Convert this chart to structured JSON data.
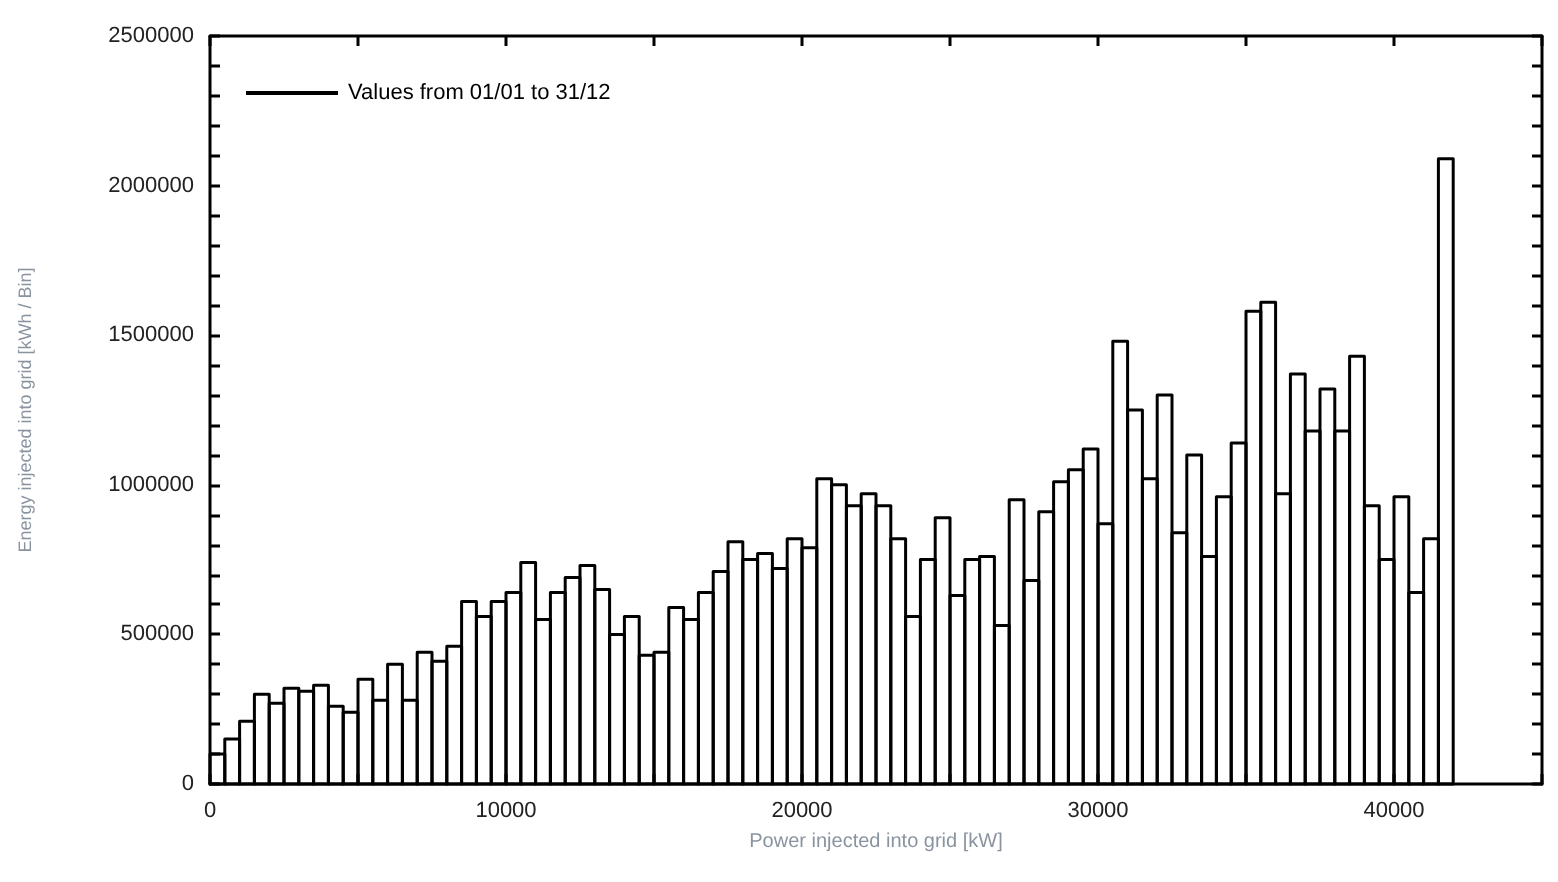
{
  "chart_data": {
    "type": "histogram",
    "xlabel": "Power injected into grid [kW]",
    "ylabel": "Energy injected into grid [kWh / Bin]",
    "bins": [
      0,
      500,
      1000,
      1500,
      2000,
      2500,
      3000,
      3500,
      4000,
      4500,
      5000,
      5500,
      6000,
      6500,
      7000,
      7500,
      8000,
      8500,
      9000,
      9500,
      10000,
      10500,
      11000,
      11500,
      12000,
      12500,
      13000,
      13500,
      14000,
      14500,
      15000,
      15500,
      16000,
      16500,
      17000,
      17500,
      18000,
      18500,
      19000,
      19500,
      20000,
      20500,
      21000,
      21500,
      22000,
      22500,
      23000,
      23500,
      24000,
      24500,
      25000,
      25500,
      26000,
      26500,
      27000,
      27500,
      28000,
      28500,
      29000,
      29500,
      30000,
      30500,
      31000,
      31500,
      32000,
      32500,
      33000,
      33500,
      34000,
      34500,
      35000,
      35500,
      36000,
      36500,
      37000,
      37500,
      38000,
      38500,
      39000,
      39500,
      40000,
      40500,
      41000,
      41500,
      42000
    ],
    "series": [
      {
        "name": "Values from 01/01 to 31/12",
        "color": "#000000",
        "values": [
          100000,
          150000,
          210000,
          300000,
          270000,
          320000,
          310000,
          330000,
          260000,
          240000,
          350000,
          280000,
          400000,
          280000,
          440000,
          410000,
          460000,
          610000,
          560000,
          610000,
          640000,
          740000,
          550000,
          640000,
          690000,
          730000,
          650000,
          500000,
          560000,
          430000,
          440000,
          590000,
          550000,
          640000,
          710000,
          810000,
          750000,
          770000,
          720000,
          820000,
          790000,
          1020000,
          1000000,
          930000,
          970000,
          930000,
          820000,
          560000,
          750000,
          890000,
          630000,
          750000,
          760000,
          530000,
          950000,
          680000,
          910000,
          1010000,
          1050000,
          1120000,
          870000,
          1480000,
          1250000,
          1020000,
          1300000,
          840000,
          1100000,
          760000,
          960000,
          1140000,
          1580000,
          1610000,
          970000,
          1370000,
          1180000,
          1320000,
          1180000,
          1430000,
          930000,
          750000,
          960000,
          640000,
          820000,
          2090000
        ]
      }
    ],
    "xlim": [
      0,
      45000
    ],
    "xticks": [
      0,
      {
        "value": 5000,
        "label": null
      },
      10000,
      {
        "value": 15000,
        "label": null
      },
      20000,
      {
        "value": 25000,
        "label": null
      },
      30000,
      {
        "value": 35000,
        "label": null
      },
      40000,
      {
        "value": 45000,
        "label": null
      }
    ],
    "ylim": [
      0,
      2500000
    ],
    "yticks": [
      0,
      {
        "value": 100000,
        "label": null
      },
      {
        "value": 200000,
        "label": null
      },
      {
        "value": 300000,
        "label": null
      },
      {
        "value": 400000,
        "label": null
      },
      500000,
      {
        "value": 600000,
        "label": null
      },
      {
        "value": 700000,
        "label": null
      },
      {
        "value": 800000,
        "label": null
      },
      {
        "value": 900000,
        "label": null
      },
      1000000,
      {
        "value": 1100000,
        "label": null
      },
      {
        "value": 1200000,
        "label": null
      },
      {
        "value": 1300000,
        "label": null
      },
      {
        "value": 1400000,
        "label": null
      },
      1500000,
      {
        "value": 1600000,
        "label": null
      },
      {
        "value": 1700000,
        "label": null
      },
      {
        "value": 1800000,
        "label": null
      },
      {
        "value": 1900000,
        "label": null
      },
      2000000,
      {
        "value": 2100000,
        "label": null
      },
      {
        "value": 2200000,
        "label": null
      },
      {
        "value": 2300000,
        "label": null
      },
      {
        "value": 2400000,
        "label": null
      },
      2500000
    ],
    "grid": false,
    "legend": "top left"
  }
}
